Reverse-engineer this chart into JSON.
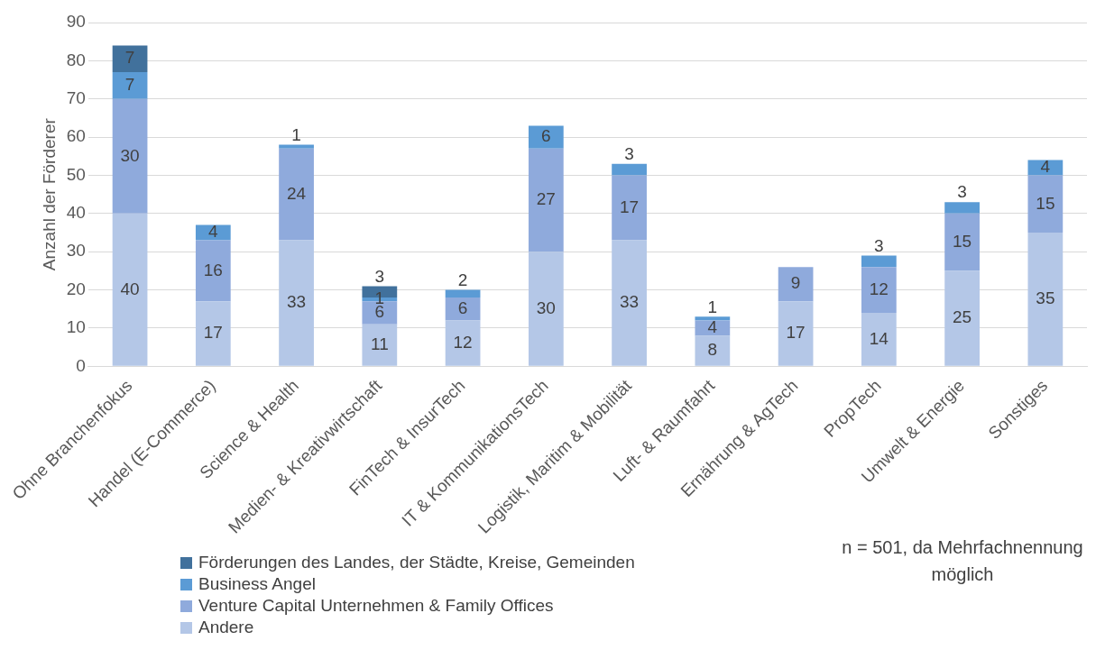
{
  "chart_data": {
    "type": "bar",
    "stacked": true,
    "ylabel": "Anzahl der Förderer",
    "categories": [
      "Ohne Branchenfokus",
      "Handel (E-Commerce)",
      "Science & Health",
      "Medien- & Kreativwirtschaft",
      "FinTech & InsurTech",
      "IT & KommunikationsTech",
      "Logistik, Maritim & Mobilität",
      "Luft- & Raumfahrt",
      "Ernährung & AgTech",
      "PropTech",
      "Umwelt & Energie",
      "Sonstiges"
    ],
    "series": [
      {
        "name": "Andere",
        "color": "#b4c7e7",
        "values": [
          40,
          17,
          33,
          11,
          12,
          30,
          33,
          8,
          17,
          14,
          25,
          35
        ]
      },
      {
        "name": "Venture Capital Unternehmen & Family Offices",
        "color": "#8faadc",
        "values": [
          30,
          16,
          24,
          6,
          6,
          27,
          17,
          4,
          9,
          12,
          15,
          15
        ]
      },
      {
        "name": "Business Angel",
        "color": "#5b9bd5",
        "values": [
          7,
          4,
          1,
          1,
          2,
          6,
          3,
          1,
          null,
          3,
          3,
          4
        ]
      },
      {
        "name": "Förderungen des Landes, der Städte, Kreise, Gemeinden",
        "color": "#41719c",
        "values": [
          7,
          null,
          null,
          3,
          null,
          null,
          null,
          null,
          null,
          null,
          null,
          null
        ]
      }
    ],
    "ylim": [
      0,
      90
    ],
    "yticks": [
      0,
      10,
      20,
      30,
      40,
      50,
      60,
      70,
      80,
      90
    ],
    "grid": "y",
    "legend": "bottom left",
    "data_labels": true,
    "annotations": [
      "n = 501, da Mehrfachnennung möglich"
    ]
  }
}
